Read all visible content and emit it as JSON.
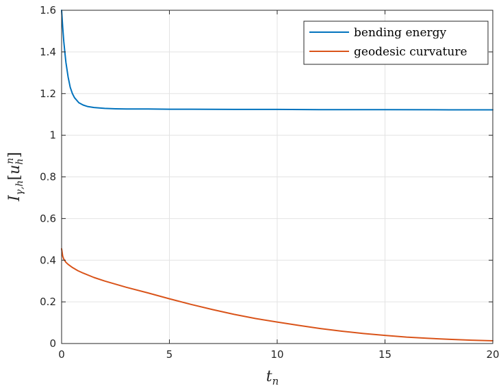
{
  "chart_data": {
    "type": "line",
    "title": "",
    "xlabel": {
      "main": "t",
      "sub": "n"
    },
    "ylabel": {
      "main": "I",
      "sub": "γ,h",
      "bracket_open": "[",
      "var": "u",
      "var_sub": "h",
      "var_sup": "n",
      "bracket_close": "]"
    },
    "xlim": [
      0,
      20
    ],
    "ylim": [
      0,
      1.6
    ],
    "xticks": [
      0,
      5,
      10,
      15,
      20
    ],
    "xtick_labels": [
      "0",
      "5",
      "10",
      "15",
      "20"
    ],
    "yticks": [
      0,
      0.2,
      0.4,
      0.6,
      0.8,
      1,
      1.2,
      1.4,
      1.6
    ],
    "ytick_labels": [
      "0",
      "0.2",
      "0.4",
      "0.6",
      "0.8",
      "1",
      "1.2",
      "1.4",
      "1.6"
    ],
    "grid": true,
    "legend_position": "top-right",
    "series": [
      {
        "name": "bending energy",
        "color": "#0072BD",
        "x": [
          0,
          0.05,
          0.1,
          0.15,
          0.2,
          0.3,
          0.4,
          0.5,
          0.6,
          0.8,
          1.0,
          1.2,
          1.5,
          2.0,
          2.5,
          3,
          4,
          5,
          6,
          8,
          10,
          12,
          15,
          18,
          20
        ],
        "y": [
          1.6,
          1.52,
          1.45,
          1.4,
          1.35,
          1.28,
          1.23,
          1.2,
          1.18,
          1.156,
          1.145,
          1.138,
          1.133,
          1.129,
          1.127,
          1.126,
          1.126,
          1.125,
          1.125,
          1.124,
          1.124,
          1.123,
          1.123,
          1.122,
          1.122
        ]
      },
      {
        "name": "geodesic curvature",
        "color": "#D95319",
        "x": [
          0,
          0.05,
          0.1,
          0.2,
          0.3,
          0.5,
          0.75,
          1.0,
          1.5,
          2,
          3,
          4,
          5,
          6,
          7,
          8,
          9,
          10,
          11,
          12,
          13,
          14,
          15,
          16,
          17,
          18,
          19,
          20
        ],
        "y": [
          0.455,
          0.42,
          0.405,
          0.39,
          0.38,
          0.365,
          0.35,
          0.338,
          0.317,
          0.3,
          0.27,
          0.243,
          0.215,
          0.188,
          0.163,
          0.14,
          0.12,
          0.103,
          0.087,
          0.072,
          0.059,
          0.048,
          0.039,
          0.031,
          0.025,
          0.02,
          0.016,
          0.013
        ]
      }
    ]
  }
}
